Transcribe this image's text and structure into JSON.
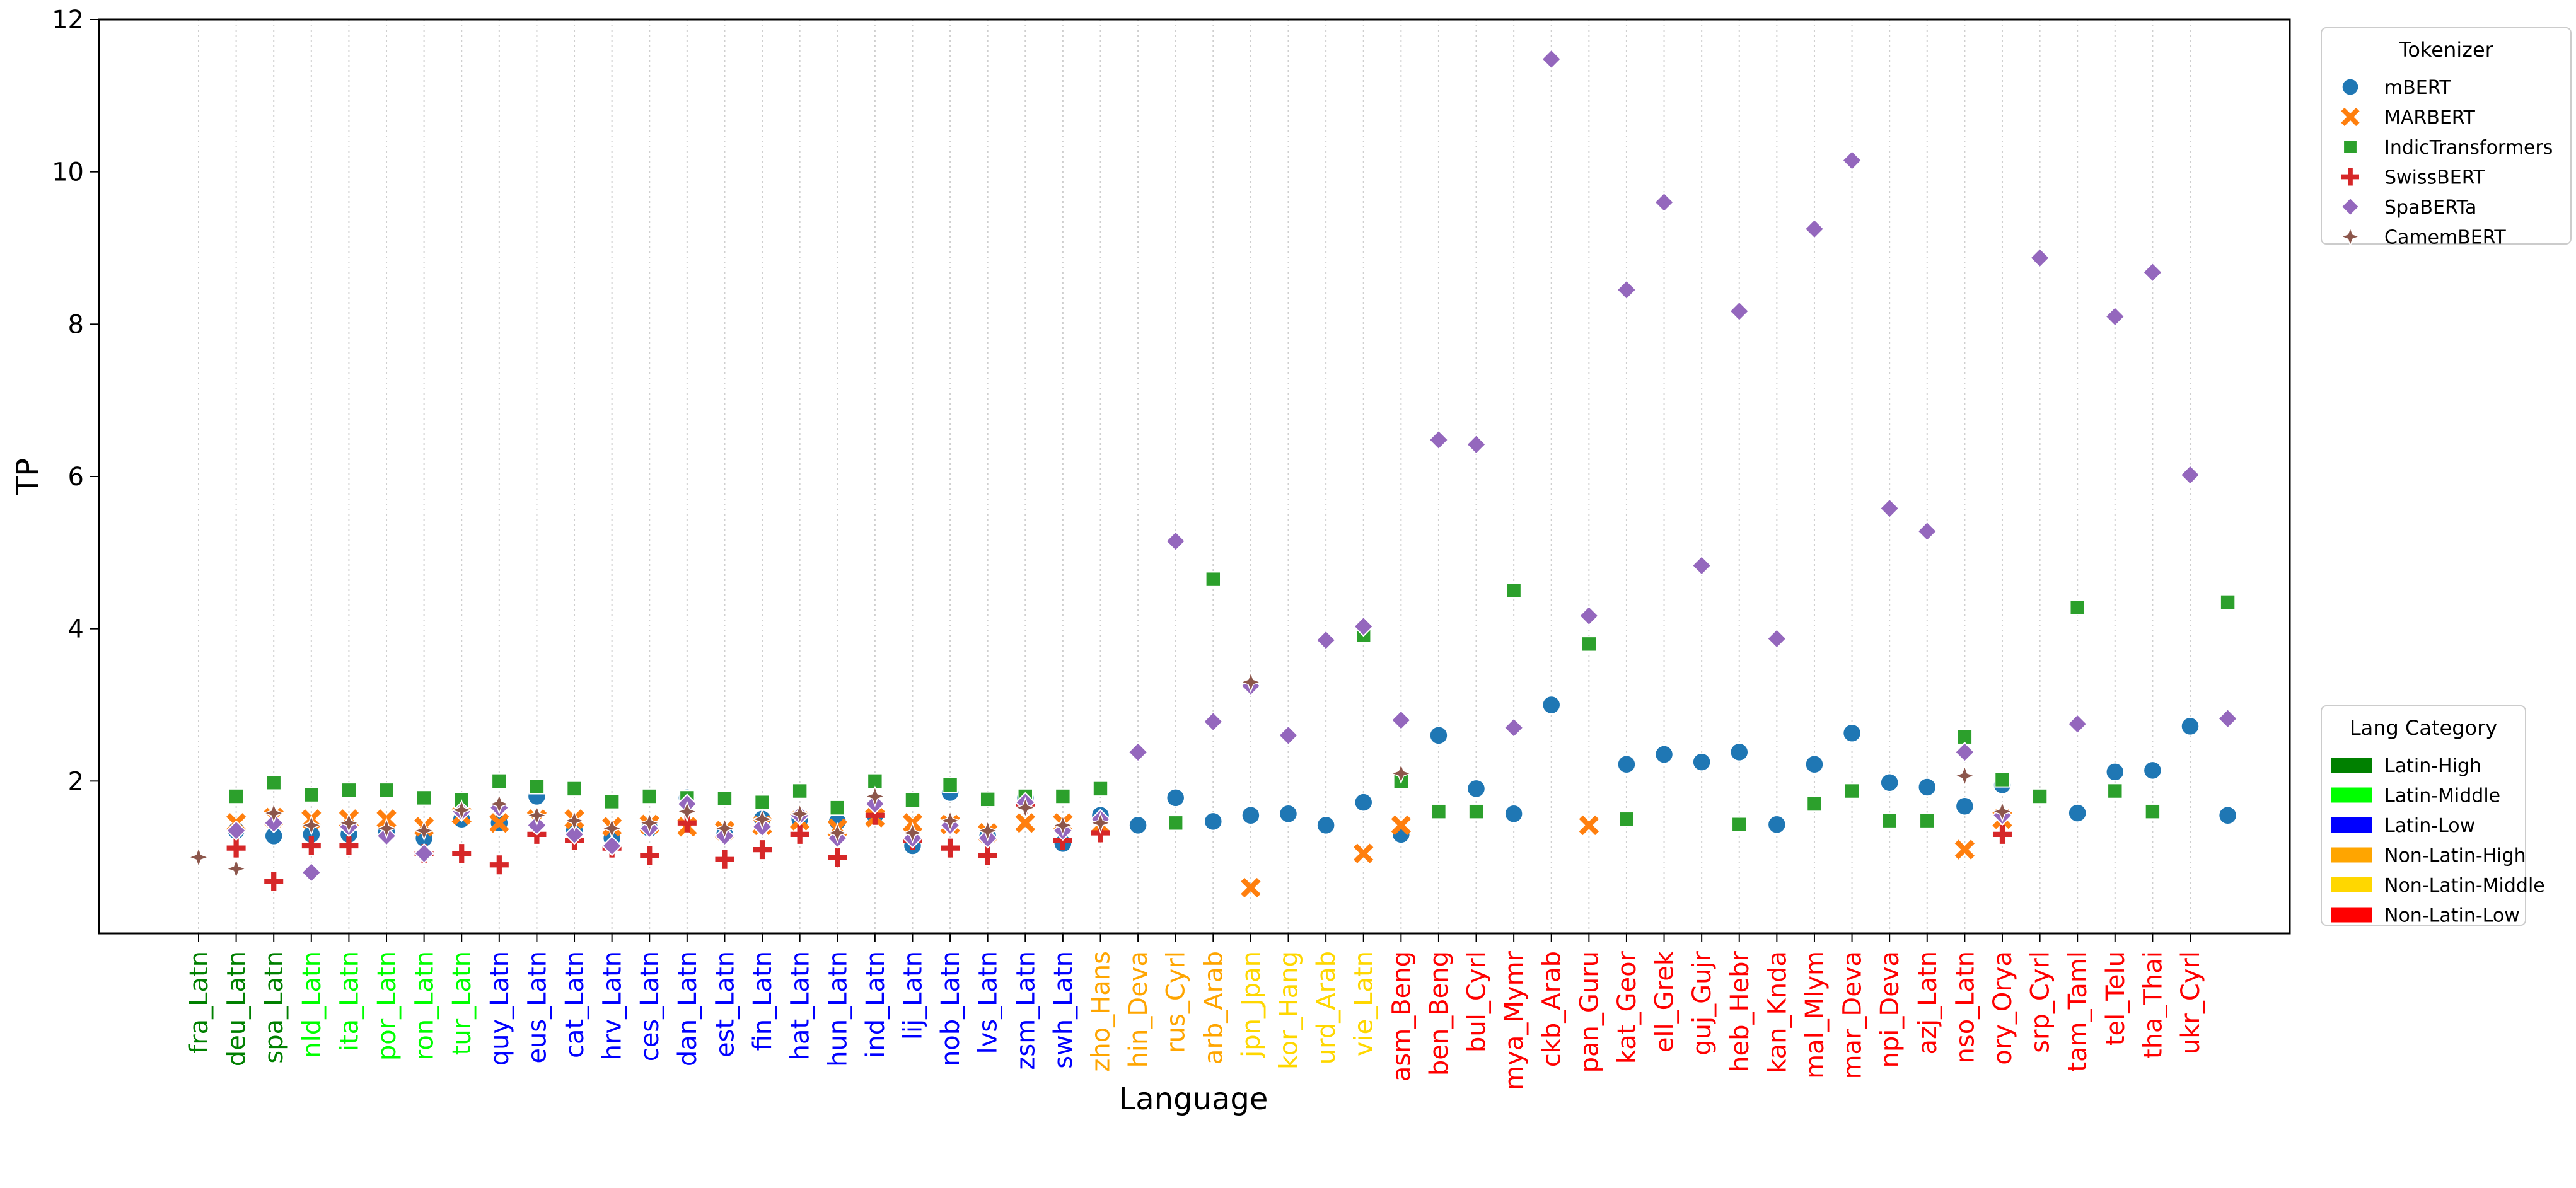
{
  "chart_data": {
    "type": "scatter",
    "xlabel": "Language",
    "ylabel": "TP",
    "ylim": [
      0,
      12
    ],
    "yticks": [
      2,
      4,
      6,
      8,
      10,
      12
    ],
    "grid": "vertical dotted",
    "legend_placement": "top-right",
    "categories": [
      "fra_Latn",
      "deu_Latn",
      "spa_Latn",
      "nld_Latn",
      "ita_Latn",
      "por_Latn",
      "ron_Latn",
      "tur_Latn",
      "quy_Latn",
      "eus_Latn",
      "cat_Latn",
      "hrv_Latn",
      "ces_Latn",
      "dan_Latn",
      "est_Latn",
      "fin_Latn",
      "hat_Latn",
      "hun_Latn",
      "ind_Latn",
      "lij_Latn",
      "nob_Latn",
      "lvs_Latn",
      "zsm_Latn",
      "swh_Latn",
      "zho_Hans",
      "hin_Deva",
      "rus_Cyrl",
      "arb_Arab",
      "jpn_Jpan",
      "kor_Hang",
      "urd_Arab",
      "vie_Latn",
      "asm_Beng",
      "ben_Beng",
      "bul_Cyrl",
      "mya_Mymr",
      "ckb_Arab",
      "pan_Guru",
      "kat_Geor",
      "ell_Grek",
      "guj_Gujr",
      "heb_Hebr",
      "kan_Knda",
      "mal_Mlym",
      "mar_Deva",
      "npi_Deva",
      "azj_Latn",
      "nso_Latn",
      "ory_Orya",
      "srp_Cyrl",
      "tam_Taml",
      "tel_Telu",
      "tha_Thai",
      "ukr_Cyrl"
    ],
    "category_groups": [
      "Latin-High",
      "Latin-High",
      "Latin-High",
      "Latin-Middle",
      "Latin-Middle",
      "Latin-Middle",
      "Latin-Middle",
      "Latin-Middle",
      "Latin-Low",
      "Latin-Low",
      "Latin-Low",
      "Latin-Low",
      "Latin-Low",
      "Latin-Low",
      "Latin-Low",
      "Latin-Low",
      "Latin-Low",
      "Latin-Low",
      "Latin-Low",
      "Latin-Low",
      "Latin-Low",
      "Latin-Low",
      "Latin-Low",
      "Latin-Low",
      "Non-Latin-High",
      "Non-Latin-High",
      "Non-Latin-High",
      "Non-Latin-High",
      "Non-Latin-Middle",
      "Non-Latin-Middle",
      "Non-Latin-Middle",
      "Non-Latin-Middle",
      "Non-Latin-Low",
      "Non-Latin-Low",
      "Non-Latin-Low",
      "Non-Latin-Low",
      "Non-Latin-Low",
      "Non-Latin-Low",
      "Non-Latin-Low",
      "Non-Latin-Low",
      "Non-Latin-Low",
      "Non-Latin-Low",
      "Non-Latin-Low",
      "Non-Latin-Low",
      "Non-Latin-Low",
      "Non-Latin-Low",
      "Non-Latin-Low",
      "Non-Latin-Low",
      "Non-Latin-Low",
      "Non-Latin-Low",
      "Non-Latin-Low",
      "Non-Latin-Low",
      "Non-Latin-Low",
      "Non-Latin-Low"
    ],
    "series": [
      {
        "name": "mBERT",
        "marker": "circle",
        "color": "#1f77b4",
        "points": [
          [
            1,
            1.35
          ],
          [
            2,
            1.28
          ],
          [
            3,
            1.3
          ],
          [
            4,
            1.3
          ],
          [
            5,
            1.33
          ],
          [
            6,
            1.25
          ],
          [
            7,
            1.5
          ],
          [
            8,
            1.45
          ],
          [
            9,
            1.8
          ],
          [
            10,
            1.35
          ],
          [
            11,
            1.25
          ],
          [
            12,
            1.38
          ],
          [
            13,
            1.78
          ],
          [
            14,
            1.3
          ],
          [
            15,
            1.5
          ],
          [
            16,
            1.5
          ],
          [
            17,
            1.47
          ],
          [
            18,
            1.55
          ],
          [
            19,
            1.15
          ],
          [
            20,
            1.85
          ],
          [
            21,
            1.28
          ],
          [
            22,
            1.78
          ],
          [
            23,
            1.18
          ],
          [
            24,
            1.55
          ],
          [
            25,
            1.42
          ],
          [
            26,
            1.78
          ],
          [
            27,
            1.47
          ],
          [
            28,
            1.55
          ],
          [
            29,
            1.57
          ],
          [
            30,
            1.42
          ],
          [
            31,
            1.72
          ],
          [
            32,
            1.3
          ],
          [
            33,
            2.6
          ],
          [
            34,
            1.9
          ],
          [
            35,
            1.57
          ],
          [
            36,
            3.0
          ],
          [
            38,
            2.22
          ],
          [
            39,
            2.35
          ],
          [
            40,
            2.25
          ],
          [
            41,
            2.38
          ],
          [
            42,
            1.43
          ],
          [
            43,
            2.22
          ],
          [
            44,
            2.63
          ],
          [
            45,
            1.98
          ],
          [
            46,
            1.92
          ],
          [
            47,
            1.67
          ],
          [
            48,
            1.95
          ],
          [
            50,
            1.58
          ],
          [
            51,
            2.12
          ],
          [
            52,
            2.14
          ],
          [
            53,
            2.72
          ],
          [
            54,
            1.55
          ]
        ]
      },
      {
        "name": "MARBERT",
        "marker": "x",
        "color": "#ff7f0e",
        "points": [
          [
            1,
            1.45
          ],
          [
            2,
            1.52
          ],
          [
            3,
            1.5
          ],
          [
            4,
            1.5
          ],
          [
            5,
            1.5
          ],
          [
            6,
            1.4
          ],
          [
            7,
            1.55
          ],
          [
            8,
            1.45
          ],
          [
            9,
            1.5
          ],
          [
            10,
            1.5
          ],
          [
            11,
            1.4
          ],
          [
            12,
            1.43
          ],
          [
            13,
            1.4
          ],
          [
            14,
            1.35
          ],
          [
            15,
            1.42
          ],
          [
            16,
            1.48
          ],
          [
            17,
            1.38
          ],
          [
            18,
            1.52
          ],
          [
            19,
            1.45
          ],
          [
            20,
            1.43
          ],
          [
            21,
            1.32
          ],
          [
            22,
            1.45
          ],
          [
            23,
            1.45
          ],
          [
            24,
            1.42
          ],
          [
            28,
            0.6
          ],
          [
            31,
            1.05
          ],
          [
            32,
            1.42
          ],
          [
            37,
            1.42
          ],
          [
            47,
            1.1
          ],
          [
            48,
            1.5
          ]
        ]
      },
      {
        "name": "IndicTransformers",
        "marker": "square",
        "color": "#2ca02c",
        "points": [
          [
            1,
            1.8
          ],
          [
            2,
            1.98
          ],
          [
            3,
            1.82
          ],
          [
            4,
            1.88
          ],
          [
            5,
            1.88
          ],
          [
            6,
            1.78
          ],
          [
            7,
            1.75
          ],
          [
            8,
            2.0
          ],
          [
            9,
            1.93
          ],
          [
            10,
            1.9
          ],
          [
            11,
            1.73
          ],
          [
            12,
            1.8
          ],
          [
            13,
            1.78
          ],
          [
            14,
            1.77
          ],
          [
            15,
            1.72
          ],
          [
            16,
            1.87
          ],
          [
            17,
            1.65
          ],
          [
            18,
            2.0
          ],
          [
            19,
            1.75
          ],
          [
            20,
            1.95
          ],
          [
            21,
            1.76
          ],
          [
            22,
            1.8
          ],
          [
            23,
            1.8
          ],
          [
            24,
            1.9
          ],
          [
            26,
            1.45
          ],
          [
            27,
            4.65
          ],
          [
            31,
            3.92
          ],
          [
            32,
            2.0
          ],
          [
            33,
            1.6
          ],
          [
            34,
            1.6
          ],
          [
            35,
            4.5
          ],
          [
            37,
            3.8
          ],
          [
            38,
            1.5
          ],
          [
            41,
            1.43
          ],
          [
            43,
            1.7
          ],
          [
            44,
            1.87
          ],
          [
            45,
            1.48
          ],
          [
            46,
            1.48
          ],
          [
            47,
            2.58
          ],
          [
            48,
            2.02
          ],
          [
            49,
            1.8
          ],
          [
            50,
            4.28
          ],
          [
            51,
            1.87
          ],
          [
            52,
            1.6
          ],
          [
            54,
            4.35
          ]
        ]
      },
      {
        "name": "SwissBERT",
        "marker": "plus",
        "color": "#d62728",
        "points": [
          [
            1,
            1.12
          ],
          [
            2,
            0.68
          ],
          [
            3,
            1.15
          ],
          [
            4,
            1.15
          ],
          [
            6,
            1.05
          ],
          [
            7,
            1.05
          ],
          [
            8,
            0.9
          ],
          [
            9,
            1.3
          ],
          [
            10,
            1.22
          ],
          [
            11,
            1.12
          ],
          [
            12,
            1.02
          ],
          [
            13,
            1.45
          ],
          [
            14,
            0.97
          ],
          [
            15,
            1.1
          ],
          [
            16,
            1.3
          ],
          [
            17,
            1.0
          ],
          [
            18,
            1.55
          ],
          [
            19,
            1.22
          ],
          [
            20,
            1.12
          ],
          [
            21,
            1.02
          ],
          [
            22,
            1.7
          ],
          [
            23,
            1.22
          ],
          [
            24,
            1.32
          ],
          [
            48,
            1.3
          ]
        ]
      },
      {
        "name": "SpaBERTa",
        "marker": "diamond",
        "color": "#9467bd",
        "points": [
          [
            1,
            1.35
          ],
          [
            2,
            1.45
          ],
          [
            3,
            0.8
          ],
          [
            4,
            1.4
          ],
          [
            5,
            1.28
          ],
          [
            6,
            1.05
          ],
          [
            7,
            1.6
          ],
          [
            8,
            1.65
          ],
          [
            9,
            1.42
          ],
          [
            10,
            1.3
          ],
          [
            11,
            1.15
          ],
          [
            12,
            1.38
          ],
          [
            13,
            1.7
          ],
          [
            14,
            1.28
          ],
          [
            15,
            1.4
          ],
          [
            16,
            1.55
          ],
          [
            17,
            1.25
          ],
          [
            18,
            1.7
          ],
          [
            19,
            1.25
          ],
          [
            20,
            1.42
          ],
          [
            21,
            1.25
          ],
          [
            22,
            1.72
          ],
          [
            23,
            1.35
          ],
          [
            24,
            1.5
          ],
          [
            25,
            2.38
          ],
          [
            26,
            5.15
          ],
          [
            27,
            2.78
          ],
          [
            28,
            3.25
          ],
          [
            29,
            2.6
          ],
          [
            30,
            3.85
          ],
          [
            31,
            4.03
          ],
          [
            32,
            2.8
          ],
          [
            33,
            6.48
          ],
          [
            34,
            6.42
          ],
          [
            35,
            2.7
          ],
          [
            36,
            11.48
          ],
          [
            37,
            4.17
          ],
          [
            38,
            8.45
          ],
          [
            39,
            9.6
          ],
          [
            40,
            4.83
          ],
          [
            41,
            8.17
          ],
          [
            42,
            3.87
          ],
          [
            43,
            9.25
          ],
          [
            44,
            10.15
          ],
          [
            45,
            5.58
          ],
          [
            46,
            5.28
          ],
          [
            47,
            2.38
          ],
          [
            48,
            1.55
          ],
          [
            49,
            8.87
          ],
          [
            50,
            2.75
          ],
          [
            51,
            8.1
          ],
          [
            52,
            8.68
          ],
          [
            53,
            6.02
          ],
          [
            54,
            2.82
          ]
        ]
      },
      {
        "name": "CamemBERT",
        "marker": "star",
        "color": "#8c564b",
        "points": [
          [
            0,
            1.0
          ],
          [
            1,
            0.85
          ],
          [
            2,
            1.58
          ],
          [
            3,
            1.42
          ],
          [
            4,
            1.45
          ],
          [
            5,
            1.38
          ],
          [
            6,
            1.35
          ],
          [
            7,
            1.62
          ],
          [
            8,
            1.7
          ],
          [
            9,
            1.55
          ],
          [
            10,
            1.48
          ],
          [
            11,
            1.38
          ],
          [
            12,
            1.45
          ],
          [
            13,
            1.6
          ],
          [
            14,
            1.38
          ],
          [
            15,
            1.5
          ],
          [
            16,
            1.57
          ],
          [
            17,
            1.32
          ],
          [
            18,
            1.8
          ],
          [
            19,
            1.32
          ],
          [
            20,
            1.48
          ],
          [
            21,
            1.35
          ],
          [
            22,
            1.65
          ],
          [
            23,
            1.42
          ],
          [
            24,
            1.45
          ],
          [
            28,
            3.3
          ],
          [
            32,
            2.1
          ],
          [
            47,
            2.07
          ],
          [
            48,
            1.6
          ]
        ]
      }
    ],
    "legends": [
      {
        "title": "Tokenizer",
        "placement": "upper-right",
        "entries": [
          {
            "label": "mBERT",
            "marker": "circle",
            "color": "#1f77b4"
          },
          {
            "label": "MARBERT",
            "marker": "x",
            "color": "#ff7f0e"
          },
          {
            "label": "IndicTransformers",
            "marker": "square",
            "color": "#2ca02c"
          },
          {
            "label": "SwissBERT",
            "marker": "plus",
            "color": "#d62728"
          },
          {
            "label": "SpaBERTa",
            "marker": "diamond",
            "color": "#9467bd"
          },
          {
            "label": "CamemBERT",
            "marker": "star",
            "color": "#8c564b"
          }
        ]
      },
      {
        "title": "Lang Category",
        "placement": "lower-right",
        "entries": [
          {
            "label": "Latin-High",
            "color": "#008000"
          },
          {
            "label": "Latin-Middle",
            "color": "#00ff00"
          },
          {
            "label": "Latin-Low",
            "color": "#0000ff"
          },
          {
            "label": "Non-Latin-High",
            "color": "#ffa500"
          },
          {
            "label": "Non-Latin-Middle",
            "color": "#ffd700"
          },
          {
            "label": "Non-Latin-Low",
            "color": "#ff0000"
          }
        ]
      }
    ]
  }
}
